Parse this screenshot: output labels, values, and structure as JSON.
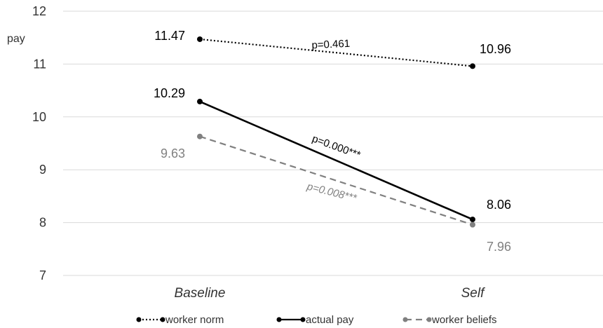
{
  "chart_data": {
    "type": "line",
    "ylabel": "pay",
    "ylim": [
      7,
      12
    ],
    "yticks": [
      "7",
      "8",
      "9",
      "10",
      "11",
      "12"
    ],
    "categories": [
      "Baseline",
      "Self"
    ],
    "grid": true,
    "legend_position": "bottom",
    "series": [
      {
        "name": "worker norm",
        "values": [
          11.47,
          10.96
        ],
        "labels": [
          "11.47",
          "10.96"
        ],
        "color": "#000000",
        "style": "dotted",
        "pvalue": "p=0.461"
      },
      {
        "name": "actual pay",
        "values": [
          10.29,
          8.06
        ],
        "labels": [
          "10.29",
          "8.06"
        ],
        "color": "#000000",
        "style": "solid",
        "pvalue": "p=0.000***"
      },
      {
        "name": "worker beliefs",
        "values": [
          9.63,
          7.96
        ],
        "labels": [
          "9.63",
          "7.96"
        ],
        "color": "#808080",
        "style": "dashed",
        "pvalue": "p=0.008***"
      }
    ]
  }
}
